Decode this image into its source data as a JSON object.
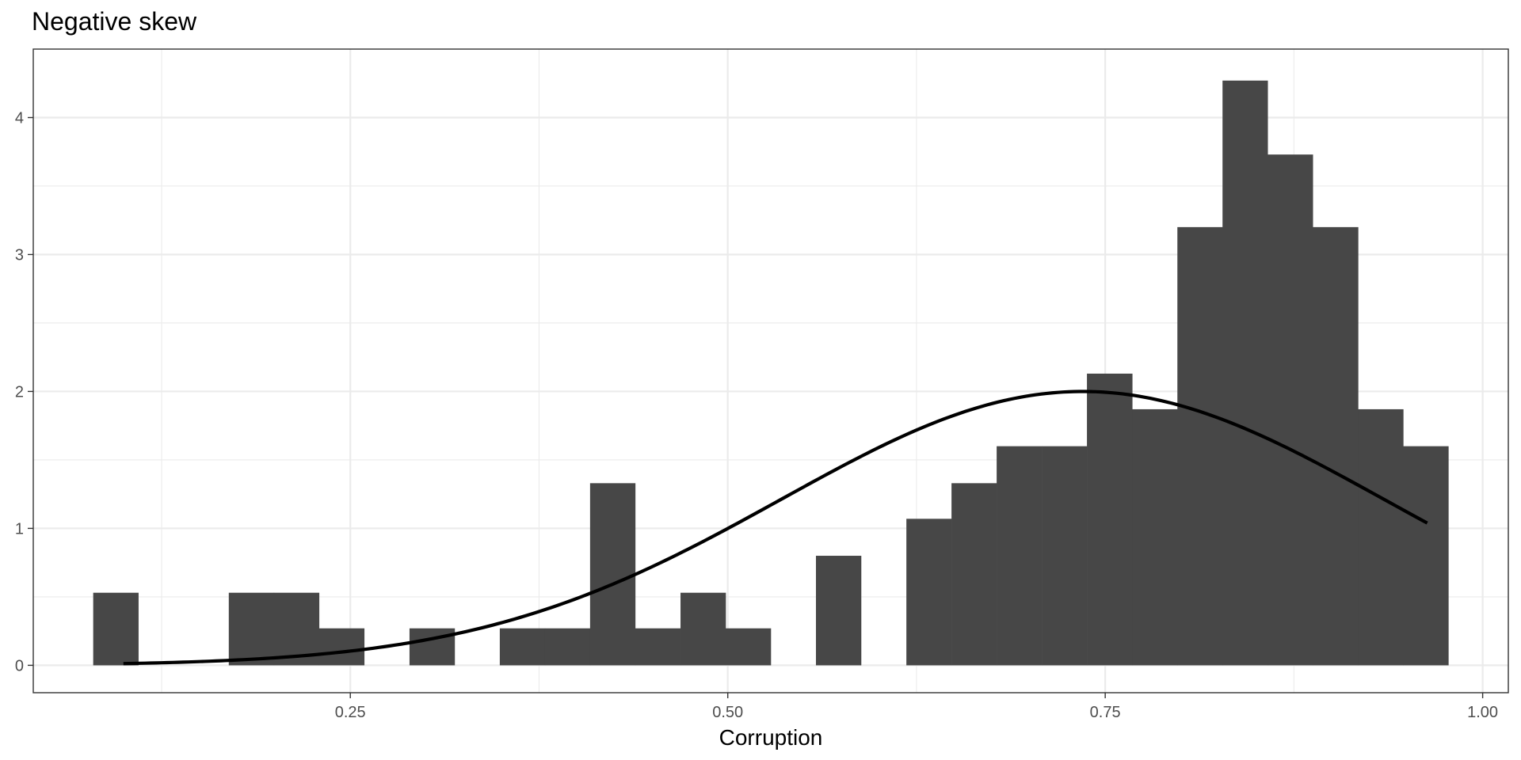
{
  "chart_data": {
    "type": "bar",
    "title": "Negative skew",
    "xlabel": "Corruption",
    "ylabel": "",
    "xlim": [
      0.04,
      1.017
    ],
    "ylim": [
      -0.2,
      4.5
    ],
    "grid": true,
    "x_ticks": [
      0.25,
      0.5,
      0.75,
      1.0
    ],
    "x_tick_labels": [
      "0.25",
      "0.50",
      "0.75",
      "1.00"
    ],
    "y_ticks": [
      0,
      1,
      2,
      3,
      4
    ],
    "y_tick_labels": [
      "0",
      "1",
      "2",
      "3",
      "4"
    ],
    "bar_color": "#474747",
    "curve_color": "#000000",
    "bins": [
      {
        "x0": 0.0797,
        "x1": 0.1096,
        "value": 0.53
      },
      {
        "x0": 0.1096,
        "x1": 0.1396,
        "value": 0
      },
      {
        "x0": 0.1396,
        "x1": 0.1695,
        "value": 0
      },
      {
        "x0": 0.1695,
        "x1": 0.1994,
        "value": 0.53
      },
      {
        "x0": 0.1994,
        "x1": 0.2293,
        "value": 0.53
      },
      {
        "x0": 0.2293,
        "x1": 0.2592,
        "value": 0.27
      },
      {
        "x0": 0.2592,
        "x1": 0.2892,
        "value": 0
      },
      {
        "x0": 0.2892,
        "x1": 0.3191,
        "value": 0.27
      },
      {
        "x0": 0.3191,
        "x1": 0.349,
        "value": 0
      },
      {
        "x0": 0.349,
        "x1": 0.3789,
        "value": 0.27
      },
      {
        "x0": 0.3789,
        "x1": 0.4088,
        "value": 0.27
      },
      {
        "x0": 0.4088,
        "x1": 0.4387,
        "value": 1.33
      },
      {
        "x0": 0.4387,
        "x1": 0.4687,
        "value": 0.27
      },
      {
        "x0": 0.4687,
        "x1": 0.4986,
        "value": 0.53
      },
      {
        "x0": 0.4986,
        "x1": 0.5285,
        "value": 0.27
      },
      {
        "x0": 0.5285,
        "x1": 0.5584,
        "value": 0
      },
      {
        "x0": 0.5584,
        "x1": 0.5883,
        "value": 0.8
      },
      {
        "x0": 0.5883,
        "x1": 0.6183,
        "value": 0
      },
      {
        "x0": 0.6183,
        "x1": 0.6482,
        "value": 1.07
      },
      {
        "x0": 0.6482,
        "x1": 0.6781,
        "value": 1.33
      },
      {
        "x0": 0.6781,
        "x1": 0.708,
        "value": 1.6
      },
      {
        "x0": 0.708,
        "x1": 0.7379,
        "value": 1.6
      },
      {
        "x0": 0.7379,
        "x1": 0.7679,
        "value": 2.13
      },
      {
        "x0": 0.7679,
        "x1": 0.7978,
        "value": 1.87
      },
      {
        "x0": 0.7978,
        "x1": 0.8277,
        "value": 3.2
      },
      {
        "x0": 0.8277,
        "x1": 0.8576,
        "value": 4.27
      },
      {
        "x0": 0.8576,
        "x1": 0.8875,
        "value": 3.73
      },
      {
        "x0": 0.8875,
        "x1": 0.9175,
        "value": 3.2
      },
      {
        "x0": 0.9175,
        "x1": 0.9474,
        "value": 1.87
      },
      {
        "x0": 0.9474,
        "x1": 0.9773,
        "value": 1.6
      }
    ],
    "density_curve": {
      "distribution": "normal",
      "mean": 0.735,
      "sd": 0.1995,
      "x_range": [
        0.0997,
        0.9633
      ]
    }
  }
}
